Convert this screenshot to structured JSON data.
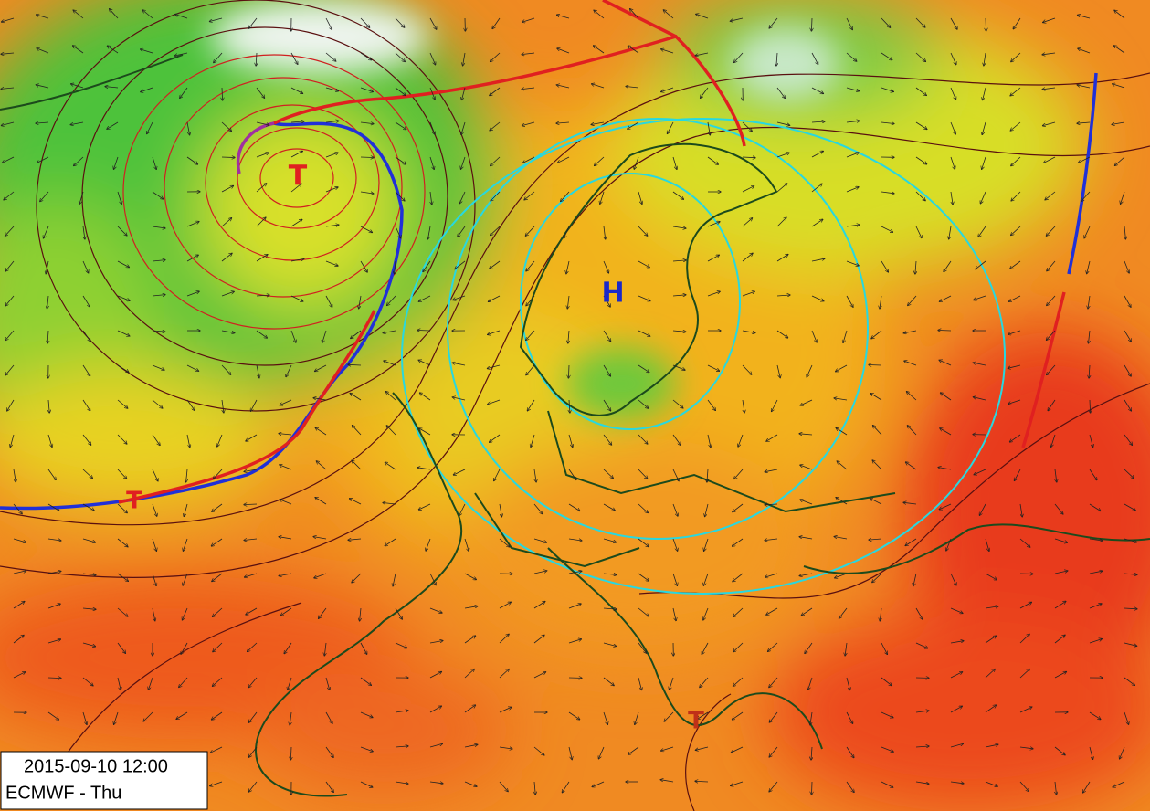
{
  "map": {
    "pressure_centers": [
      {
        "label": "T"
      },
      {
        "label": "T"
      },
      {
        "label": "T"
      },
      {
        "label": "H"
      }
    ],
    "info_box": {
      "datetime": "2015-09-10 12:00",
      "model": "ECMWF - Thu"
    }
  }
}
